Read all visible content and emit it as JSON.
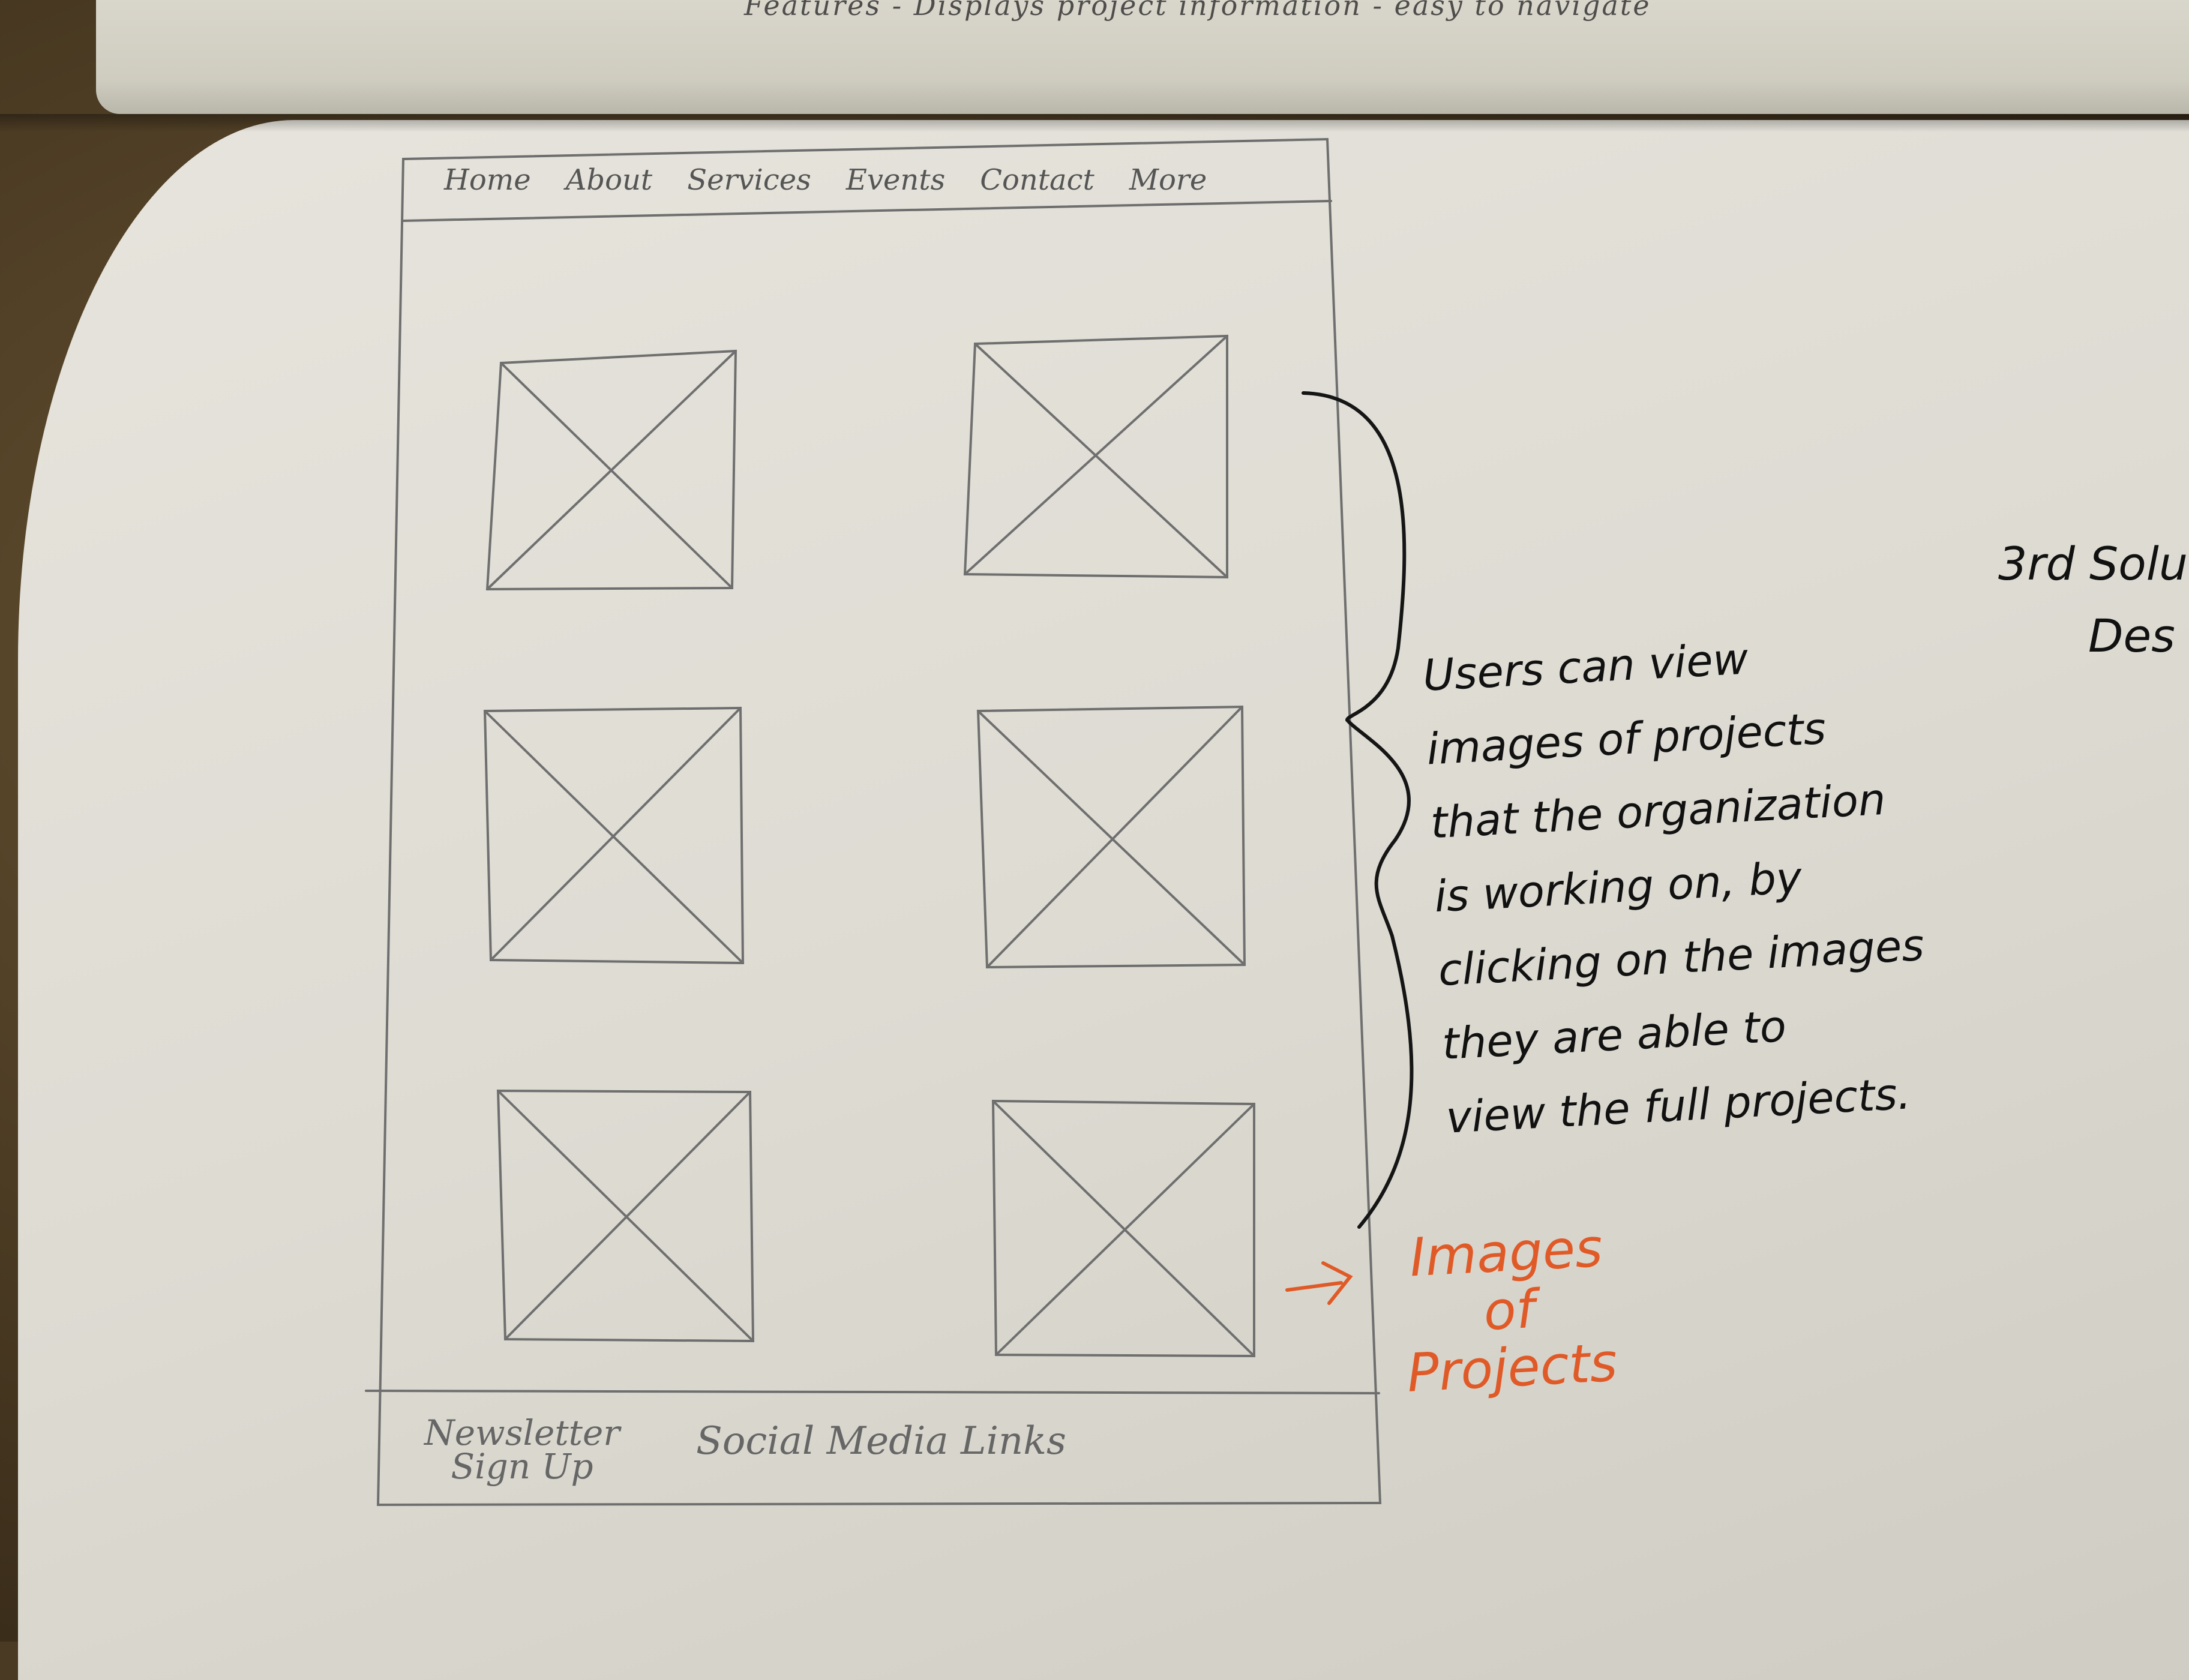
{
  "nav": {
    "items": [
      "Home",
      "About",
      "Services",
      "Events",
      "Contact",
      "More"
    ]
  },
  "images": {
    "count": 6
  },
  "footer": {
    "newsletter_line1": "Newsletter",
    "newsletter_line2": "Sign Up",
    "social": "Social Media Links"
  },
  "annotation": {
    "lines": [
      "Users can view",
      "images of projects",
      "that the organization",
      "is working on, by",
      "clicking on the images",
      "they are able to",
      "view the full projects."
    ]
  },
  "label": {
    "line1": "Images",
    "line2": "of",
    "line3": "Projects"
  },
  "edge_note": {
    "line1": "3rd Solu",
    "line2": "Des"
  },
  "top_scribble": "Features - Displays project information - easy to navigate"
}
